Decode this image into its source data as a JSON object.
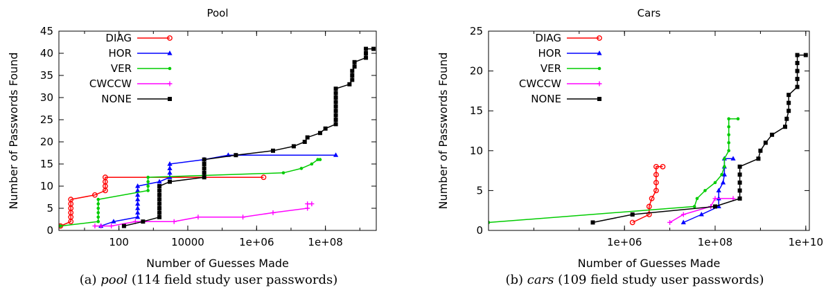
{
  "chart_data": [
    {
      "type": "line",
      "title": "Pool",
      "xlabel": "Number of Guesses Made",
      "ylabel": "Number of Passwords Found",
      "xscale": "log",
      "xlim": [
        1.8,
        3000000000
      ],
      "ylim": [
        0,
        45
      ],
      "xticks": [
        {
          "v": 100,
          "label": "100"
        },
        {
          "v": 10000,
          "label": "10000"
        },
        {
          "v": 1000000,
          "label": "1e+06"
        },
        {
          "v": 100000000,
          "label": "1e+08"
        }
      ],
      "yticks": [
        0,
        5,
        10,
        15,
        20,
        25,
        30,
        35,
        40,
        45
      ],
      "grid": false,
      "legend_position": "top-left",
      "caption": {
        "label": "(a) ",
        "name": "pool",
        "rest": " (114 field study user passwords)"
      },
      "series": [
        {
          "name": "DIAG",
          "color": "#ff0000",
          "marker": "circle",
          "points": [
            [
              2,
              1
            ],
            [
              4,
              2
            ],
            [
              4,
              3
            ],
            [
              4,
              4
            ],
            [
              4,
              5
            ],
            [
              4,
              6
            ],
            [
              4,
              7
            ],
            [
              20,
              8
            ],
            [
              40,
              9
            ],
            [
              40,
              10
            ],
            [
              40,
              11
            ],
            [
              40,
              12
            ],
            [
              1600000,
              12
            ]
          ]
        },
        {
          "name": "HOR",
          "color": "#0000ff",
          "marker": "triangle",
          "points": [
            [
              30,
              1
            ],
            [
              70,
              2
            ],
            [
              350,
              3
            ],
            [
              350,
              4
            ],
            [
              350,
              5
            ],
            [
              350,
              6
            ],
            [
              350,
              7
            ],
            [
              350,
              8
            ],
            [
              350,
              9
            ],
            [
              350,
              10
            ],
            [
              1500,
              11
            ],
            [
              3000,
              12
            ],
            [
              3000,
              13
            ],
            [
              3000,
              14
            ],
            [
              3000,
              15
            ],
            [
              30000,
              16
            ],
            [
              150000,
              17
            ],
            [
              200000000,
              17
            ]
          ]
        },
        {
          "name": "VER",
          "color": "#00cc00",
          "marker": "dot",
          "points": [
            [
              2,
              1
            ],
            [
              25,
              2
            ],
            [
              25,
              3
            ],
            [
              25,
              4
            ],
            [
              25,
              5
            ],
            [
              25,
              6
            ],
            [
              25,
              7
            ],
            [
              700,
              9
            ],
            [
              700,
              10
            ],
            [
              700,
              11
            ],
            [
              700,
              12
            ],
            [
              6000000,
              13
            ],
            [
              20000000,
              14
            ],
            [
              40000000,
              15
            ],
            [
              60000000,
              16
            ],
            [
              70000000,
              16
            ]
          ]
        },
        {
          "name": "CWCCW",
          "color": "#ff00ff",
          "marker": "plus",
          "points": [
            [
              20,
              1
            ],
            [
              30,
              1
            ],
            [
              60,
              1
            ],
            [
              300,
              2
            ],
            [
              4000,
              2
            ],
            [
              20000,
              3
            ],
            [
              400000,
              3
            ],
            [
              3000000,
              4
            ],
            [
              30000000,
              5
            ],
            [
              30000000,
              6
            ],
            [
              40000000,
              6
            ]
          ]
        },
        {
          "name": "NONE",
          "color": "#000000",
          "marker": "square",
          "points": [
            [
              140,
              1
            ],
            [
              500,
              2
            ],
            [
              1500,
              3
            ],
            [
              1500,
              4
            ],
            [
              1500,
              5
            ],
            [
              1500,
              6
            ],
            [
              1500,
              7
            ],
            [
              1500,
              8
            ],
            [
              1500,
              9
            ],
            [
              1500,
              10
            ],
            [
              3000,
              11
            ],
            [
              30000,
              12
            ],
            [
              30000,
              13
            ],
            [
              30000,
              14
            ],
            [
              30000,
              15
            ],
            [
              30000,
              16
            ],
            [
              250000,
              17
            ],
            [
              3000000,
              18
            ],
            [
              12000000,
              19
            ],
            [
              25000000,
              20
            ],
            [
              30000000,
              21
            ],
            [
              70000000,
              22
            ],
            [
              100000000,
              23
            ],
            [
              200000000,
              24
            ],
            [
              200000000,
              25
            ],
            [
              200000000,
              26
            ],
            [
              200000000,
              27
            ],
            [
              200000000,
              28
            ],
            [
              200000000,
              29
            ],
            [
              200000000,
              30
            ],
            [
              200000000,
              31
            ],
            [
              200000000,
              32
            ],
            [
              500000000,
              33
            ],
            [
              600000000,
              34
            ],
            [
              600000000,
              35
            ],
            [
              600000000,
              36
            ],
            [
              700000000,
              37
            ],
            [
              700000000,
              38
            ],
            [
              1500000000,
              39
            ],
            [
              1500000000,
              40
            ],
            [
              1500000000,
              41
            ],
            [
              2500000000,
              41
            ]
          ]
        }
      ]
    },
    {
      "type": "line",
      "title": "Cars",
      "xlabel": "Number of Guesses Made",
      "ylabel": "Number of Passwords Found",
      "xscale": "log",
      "xlim": [
        1000,
        12000000000
      ],
      "ylim": [
        0,
        25
      ],
      "xticks": [
        {
          "v": 1000000,
          "label": "1e+06"
        },
        {
          "v": 100000000,
          "label": "1e+08"
        },
        {
          "v": 10000000000,
          "label": "1e+10"
        }
      ],
      "yticks": [
        0,
        5,
        10,
        15,
        20,
        25
      ],
      "grid": false,
      "legend_position": "top-left",
      "caption": {
        "label": "(b) ",
        "name": "cars",
        "rest": " (109 field study user passwords)"
      },
      "series": [
        {
          "name": "DIAG",
          "color": "#ff0000",
          "marker": "circle",
          "points": [
            [
              1500000,
              1
            ],
            [
              3500000,
              2
            ],
            [
              3500000,
              3
            ],
            [
              4000000,
              4
            ],
            [
              5000000,
              5
            ],
            [
              5000000,
              6
            ],
            [
              5000000,
              7
            ],
            [
              5000000,
              8
            ],
            [
              7000000,
              8
            ]
          ]
        },
        {
          "name": "HOR",
          "color": "#0000ff",
          "marker": "triangle",
          "points": [
            [
              20000000,
              1
            ],
            [
              50000000,
              2
            ],
            [
              120000000,
              3
            ],
            [
              120000000,
              4
            ],
            [
              120000000,
              5
            ],
            [
              150000000,
              6
            ],
            [
              160000000,
              7
            ],
            [
              160000000,
              8
            ],
            [
              160000000,
              9
            ],
            [
              250000000,
              9
            ]
          ]
        },
        {
          "name": "VER",
          "color": "#00cc00",
          "marker": "dot",
          "points": [
            [
              1000,
              1
            ],
            [
              35000000,
              3
            ],
            [
              40000000,
              4
            ],
            [
              60000000,
              5
            ],
            [
              100000000,
              6
            ],
            [
              140000000,
              7
            ],
            [
              160000000,
              8
            ],
            [
              160000000,
              9
            ],
            [
              200000000,
              10
            ],
            [
              200000000,
              11
            ],
            [
              200000000,
              12
            ],
            [
              200000000,
              13
            ],
            [
              200000000,
              14
            ],
            [
              320000000,
              14
            ]
          ]
        },
        {
          "name": "CWCCW",
          "color": "#ff00ff",
          "marker": "plus",
          "points": [
            [
              10000000,
              1
            ],
            [
              20000000,
              2
            ],
            [
              80000000,
              3
            ],
            [
              100000000,
              4
            ],
            [
              250000000,
              4
            ]
          ]
        },
        {
          "name": "NONE",
          "color": "#000000",
          "marker": "square",
          "points": [
            [
              200000,
              1
            ],
            [
              1500000,
              2
            ],
            [
              100000000,
              3
            ],
            [
              350000000,
              4
            ],
            [
              350000000,
              5
            ],
            [
              350000000,
              6
            ],
            [
              350000000,
              7
            ],
            [
              350000000,
              8
            ],
            [
              900000000,
              9
            ],
            [
              1000000000,
              10
            ],
            [
              1300000000,
              11
            ],
            [
              1800000000,
              12
            ],
            [
              3500000000,
              13
            ],
            [
              3800000000,
              14
            ],
            [
              4200000000,
              15
            ],
            [
              4200000000,
              16
            ],
            [
              4200000000,
              17
            ],
            [
              6500000000,
              18
            ],
            [
              6500000000,
              19
            ],
            [
              6500000000,
              20
            ],
            [
              6500000000,
              21
            ],
            [
              6500000000,
              22
            ],
            [
              10000000000,
              22
            ]
          ]
        }
      ]
    }
  ]
}
